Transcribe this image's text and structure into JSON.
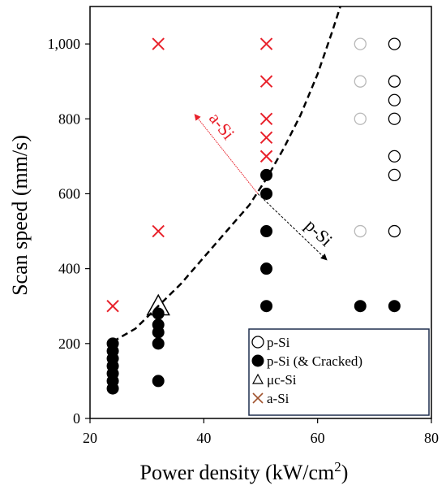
{
  "colors": {
    "red": "#e8202a",
    "black": "#000000",
    "light_gray_marker": "#b8b8b8",
    "legend_border": "#1f2e4f",
    "asi_legend": "#a0522d"
  },
  "chart_data": {
    "type": "scatter",
    "xlabel": "Power density (kW/cm²)",
    "xlabel_main": "Power density (kW/cm",
    "xlabel_sup": "2",
    "xlabel_end": ")",
    "ylabel": "Scan speed (mm/s)",
    "xlim": [
      20,
      80
    ],
    "ylim": [
      0,
      1100
    ],
    "xticks": [
      20,
      40,
      60,
      80
    ],
    "yticks": [
      0,
      200,
      400,
      600,
      800,
      1000
    ],
    "ytick_labels": [
      "0",
      "200",
      "400",
      "600",
      "800",
      "1,000"
    ],
    "grid": false,
    "legend_position": "bottom-right",
    "series": [
      {
        "name": "p-Si",
        "marker": "open-circle",
        "points": [
          {
            "x": 67.5,
            "y": 1000,
            "faded": true
          },
          {
            "x": 67.5,
            "y": 900,
            "faded": true
          },
          {
            "x": 67.5,
            "y": 800,
            "faded": true
          },
          {
            "x": 67.5,
            "y": 500,
            "faded": true
          },
          {
            "x": 73.5,
            "y": 1000
          },
          {
            "x": 73.5,
            "y": 900
          },
          {
            "x": 73.5,
            "y": 850
          },
          {
            "x": 73.5,
            "y": 800
          },
          {
            "x": 73.5,
            "y": 700
          },
          {
            "x": 73.5,
            "y": 650
          },
          {
            "x": 73.5,
            "y": 500
          }
        ]
      },
      {
        "name": "p-Si (& Cracked)",
        "marker": "filled-circle",
        "points": [
          {
            "x": 24,
            "y": 200
          },
          {
            "x": 24,
            "y": 180
          },
          {
            "x": 24,
            "y": 160
          },
          {
            "x": 24,
            "y": 140
          },
          {
            "x": 24,
            "y": 120
          },
          {
            "x": 24,
            "y": 100
          },
          {
            "x": 24,
            "y": 80
          },
          {
            "x": 32,
            "y": 280
          },
          {
            "x": 32,
            "y": 250
          },
          {
            "x": 32,
            "y": 230
          },
          {
            "x": 32,
            "y": 200
          },
          {
            "x": 32,
            "y": 100
          },
          {
            "x": 51,
            "y": 650
          },
          {
            "x": 51,
            "y": 600
          },
          {
            "x": 51,
            "y": 500
          },
          {
            "x": 51,
            "y": 400
          },
          {
            "x": 51,
            "y": 300
          },
          {
            "x": 67.5,
            "y": 300
          },
          {
            "x": 73.5,
            "y": 300
          }
        ]
      },
      {
        "name": "μc-Si",
        "marker": "open-triangle",
        "points": [
          {
            "x": 32,
            "y": 300
          }
        ]
      },
      {
        "name": "a-Si",
        "marker": "x",
        "points": [
          {
            "x": 24,
            "y": 300
          },
          {
            "x": 32,
            "y": 1000
          },
          {
            "x": 32,
            "y": 500
          },
          {
            "x": 51,
            "y": 1000
          },
          {
            "x": 51,
            "y": 900
          },
          {
            "x": 51,
            "y": 800
          },
          {
            "x": 51,
            "y": 750
          },
          {
            "x": 51,
            "y": 700
          }
        ]
      }
    ],
    "boundary_curve": [
      {
        "x": 24,
        "y": 205
      },
      {
        "x": 28,
        "y": 240
      },
      {
        "x": 32,
        "y": 300
      },
      {
        "x": 36,
        "y": 360
      },
      {
        "x": 40,
        "y": 430
      },
      {
        "x": 44,
        "y": 500
      },
      {
        "x": 48,
        "y": 570
      },
      {
        "x": 51,
        "y": 640
      },
      {
        "x": 54,
        "y": 720
      },
      {
        "x": 57,
        "y": 810
      },
      {
        "x": 60,
        "y": 920
      },
      {
        "x": 62.5,
        "y": 1030
      },
      {
        "x": 64,
        "y": 1100
      }
    ],
    "annotations": [
      {
        "text": "a-Si",
        "color": "#e8202a",
        "arrow_from": {
          "x": 49.5,
          "y": 600
        },
        "arrow_to": {
          "x": 38.5,
          "y": 810
        }
      },
      {
        "text": "p-Si",
        "color": "#000000",
        "arrow_from": {
          "x": 49.5,
          "y": 600
        },
        "arrow_to": {
          "x": 61.5,
          "y": 425
        }
      }
    ]
  }
}
